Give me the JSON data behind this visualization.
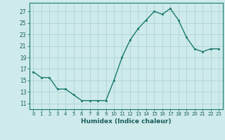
{
  "x": [
    0,
    1,
    2,
    3,
    4,
    5,
    6,
    7,
    8,
    9,
    10,
    11,
    12,
    13,
    14,
    15,
    16,
    17,
    18,
    19,
    20,
    21,
    22,
    23
  ],
  "y": [
    16.5,
    15.5,
    15.5,
    13.5,
    13.5,
    12.5,
    11.5,
    11.5,
    11.5,
    11.5,
    15.0,
    19.0,
    22.0,
    24.0,
    25.5,
    27.0,
    26.5,
    27.5,
    25.5,
    22.5,
    20.5,
    20.0,
    20.5,
    20.5
  ],
  "xlabel": "Humidex (Indice chaleur)",
  "yticks": [
    11,
    13,
    15,
    17,
    19,
    21,
    23,
    25,
    27
  ],
  "xticks": [
    0,
    1,
    2,
    3,
    4,
    5,
    6,
    7,
    8,
    9,
    10,
    11,
    12,
    13,
    14,
    15,
    16,
    17,
    18,
    19,
    20,
    21,
    22,
    23
  ],
  "ylim": [
    10.0,
    28.5
  ],
  "xlim": [
    -0.5,
    23.5
  ],
  "line_color": "#1a7a6e",
  "marker_color": "#1a7a6e",
  "bg_color": "#ceeaea",
  "grid_color": "#aed4d4",
  "tick_label_color": "#1a5c5c",
  "xlabel_color": "#1a5c5c"
}
